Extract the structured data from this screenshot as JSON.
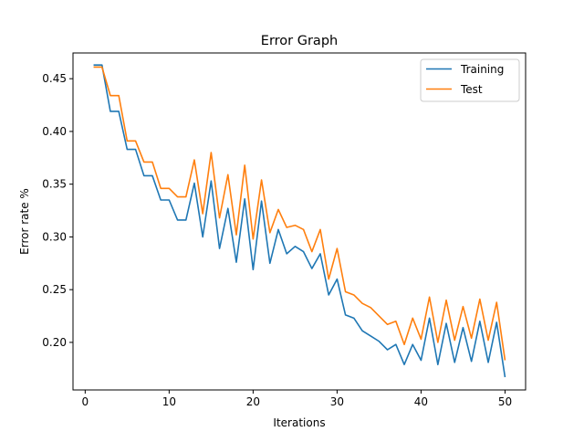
{
  "chart_data": {
    "type": "line",
    "title": "Error Graph",
    "xlabel": "Iterations",
    "ylabel": "Error rate %",
    "xlim": [
      -1.45,
      52.45
    ],
    "ylim": [
      0.1549,
      0.4744
    ],
    "xticks": [
      0,
      10,
      20,
      30,
      40,
      50
    ],
    "xtick_labels": [
      "0",
      "10",
      "20",
      "30",
      "40",
      "50"
    ],
    "yticks": [
      0.2,
      0.25,
      0.3,
      0.35,
      0.4,
      0.45
    ],
    "ytick_labels": [
      "0.20",
      "0.25",
      "0.30",
      "0.35",
      "0.40",
      "0.45"
    ],
    "grid": false,
    "legend_position": "top-right",
    "x": [
      1,
      2,
      3,
      4,
      5,
      6,
      7,
      8,
      9,
      10,
      11,
      12,
      13,
      14,
      15,
      16,
      17,
      18,
      19,
      20,
      21,
      22,
      23,
      24,
      25,
      26,
      27,
      28,
      29,
      30,
      31,
      32,
      33,
      34,
      35,
      36,
      37,
      38,
      39,
      40,
      41,
      42,
      43,
      44,
      45,
      46,
      47,
      48,
      49,
      50
    ],
    "series": [
      {
        "name": "Training",
        "color": "#1f77b4",
        "values": [
          0.463,
          0.463,
          0.419,
          0.419,
          0.383,
          0.383,
          0.358,
          0.358,
          0.335,
          0.335,
          0.316,
          0.316,
          0.351,
          0.3,
          0.353,
          0.289,
          0.327,
          0.276,
          0.336,
          0.269,
          0.334,
          0.275,
          0.307,
          0.284,
          0.291,
          0.286,
          0.27,
          0.284,
          0.245,
          0.26,
          0.226,
          0.223,
          0.211,
          0.206,
          0.201,
          0.193,
          0.198,
          0.179,
          0.198,
          0.183,
          0.223,
          0.179,
          0.218,
          0.181,
          0.214,
          0.182,
          0.22,
          0.181,
          0.219,
          0.167
        ]
      },
      {
        "name": "Test",
        "color": "#ff7f0e",
        "values": [
          0.461,
          0.461,
          0.434,
          0.434,
          0.391,
          0.391,
          0.371,
          0.371,
          0.346,
          0.346,
          0.338,
          0.338,
          0.373,
          0.322,
          0.38,
          0.318,
          0.359,
          0.302,
          0.368,
          0.298,
          0.354,
          0.304,
          0.326,
          0.309,
          0.311,
          0.307,
          0.286,
          0.307,
          0.26,
          0.289,
          0.248,
          0.245,
          0.237,
          0.233,
          0.225,
          0.217,
          0.22,
          0.198,
          0.223,
          0.203,
          0.243,
          0.2,
          0.24,
          0.202,
          0.234,
          0.204,
          0.241,
          0.202,
          0.238,
          0.183
        ]
      }
    ]
  }
}
